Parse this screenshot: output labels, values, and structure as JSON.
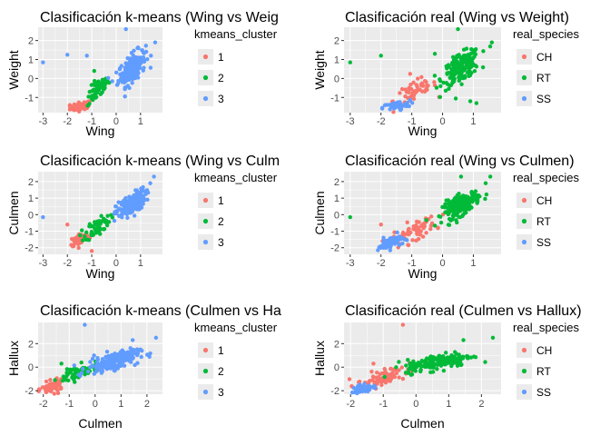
{
  "colors": {
    "c1": "#F8766D",
    "c2": "#00BA38",
    "c3": "#619CFF",
    "panel": "#EBEBEB",
    "grid": "#FFFFFF"
  },
  "chart_data": [
    {
      "type": "scatter",
      "title": "Clasificación k-means (Wing vs Weig",
      "xlabel": "Wing",
      "ylabel": "Weight",
      "xlim": [
        -3.2,
        1.9
      ],
      "ylim": [
        -1.8,
        2.7
      ],
      "xticks": [
        -3,
        -2,
        -1,
        0,
        1
      ],
      "yticks": [
        -1,
        0,
        1,
        2
      ],
      "legend_title": "kmeans_cluster",
      "legend_labels": [
        "1",
        "2",
        "3"
      ],
      "grid": true,
      "legend_position": "right"
    },
    {
      "type": "scatter",
      "title": "Clasificación real (Wing vs Weight)",
      "xlabel": "Wing",
      "ylabel": "Weight",
      "xlim": [
        -3.2,
        1.9
      ],
      "ylim": [
        -1.8,
        2.7
      ],
      "xticks": [
        -3,
        -2,
        -1,
        0,
        1
      ],
      "yticks": [
        -1,
        0,
        1,
        2
      ],
      "legend_title": "real_species",
      "legend_labels": [
        "CH",
        "RT",
        "SS"
      ],
      "grid": true,
      "legend_position": "right"
    },
    {
      "type": "scatter",
      "title": "Clasificación k-means (Wing vs Culm",
      "xlabel": "Wing",
      "ylabel": "Culmen",
      "xlim": [
        -3.2,
        1.9
      ],
      "ylim": [
        -2.4,
        2.6
      ],
      "xticks": [
        -3,
        -2,
        -1,
        0,
        1
      ],
      "yticks": [
        -2,
        -1,
        0,
        1,
        2
      ],
      "legend_title": "kmeans_cluster",
      "legend_labels": [
        "1",
        "2",
        "3"
      ],
      "grid": true,
      "legend_position": "right"
    },
    {
      "type": "scatter",
      "title": "Clasificación real (Wing vs Culmen)",
      "xlabel": "Wing",
      "ylabel": "Culmen",
      "xlim": [
        -3.2,
        1.9
      ],
      "ylim": [
        -2.4,
        2.6
      ],
      "xticks": [
        -3,
        -2,
        -1,
        0,
        1
      ],
      "yticks": [
        -2,
        -1,
        0,
        1,
        2
      ],
      "legend_title": "real_species",
      "legend_labels": [
        "CH",
        "RT",
        "SS"
      ],
      "grid": true,
      "legend_position": "right"
    },
    {
      "type": "scatter",
      "title": "Clasificación k-means (Culmen vs Ha",
      "xlabel": "Culmen",
      "ylabel": "Hallux",
      "xlim": [
        -2.2,
        2.6
      ],
      "ylim": [
        -2.3,
        3.8
      ],
      "xticks": [
        -2,
        -1,
        0,
        1,
        2
      ],
      "yticks": [
        -2,
        0,
        2
      ],
      "legend_title": "kmeans_cluster",
      "legend_labels": [
        "1",
        "2",
        "3"
      ],
      "grid": true,
      "legend_position": "right"
    },
    {
      "type": "scatter",
      "title": "Clasificación real (Culmen vs Hallux)",
      "xlabel": "Culmen",
      "ylabel": "Hallux",
      "xlim": [
        -2.2,
        2.6
      ],
      "ylim": [
        -2.3,
        3.8
      ],
      "xticks": [
        -2,
        -1,
        0,
        1,
        2
      ],
      "yticks": [
        -2,
        0,
        2
      ],
      "legend_title": "real_species",
      "legend_labels": [
        "CH",
        "RT",
        "SS"
      ],
      "grid": true,
      "legend_position": "right"
    }
  ]
}
